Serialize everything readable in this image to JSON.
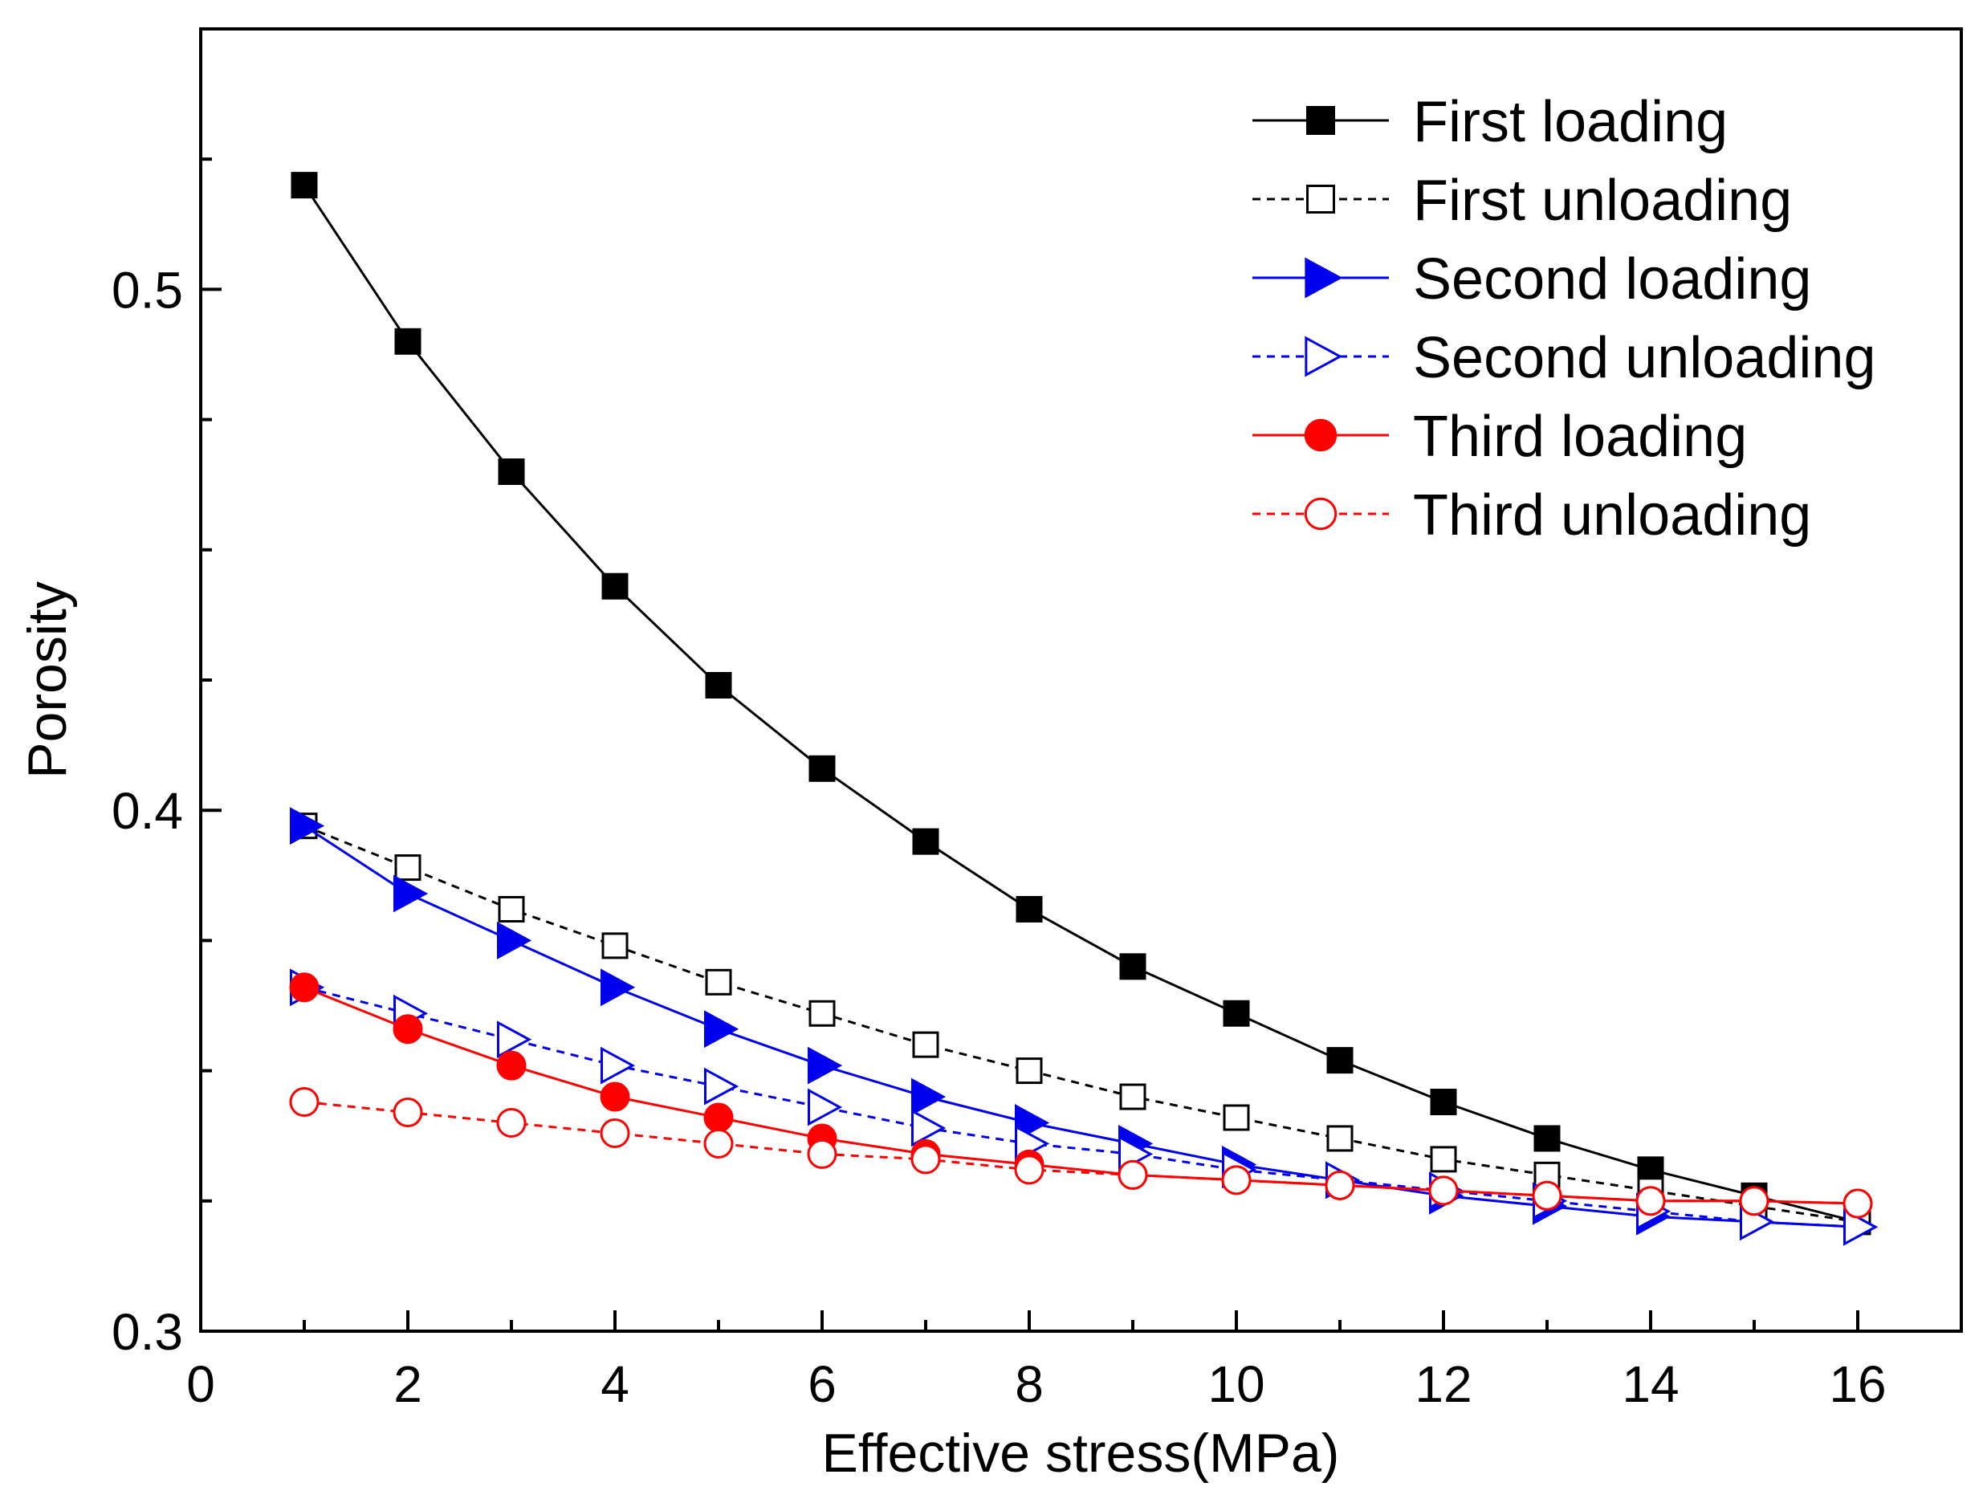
{
  "chart_data": {
    "type": "line",
    "title": "",
    "xlabel": "Effective stress(MPa)",
    "ylabel": "Porosity",
    "xlim": [
      0,
      17
    ],
    "ylim": [
      0.3,
      0.55
    ],
    "xticks": [
      0,
      2,
      4,
      6,
      8,
      10,
      12,
      14,
      16
    ],
    "xtick_labels": [
      "0",
      "2",
      "4",
      "6",
      "8",
      "10",
      "12",
      "14",
      "16"
    ],
    "yticks": [
      0.3,
      0.4,
      0.5
    ],
    "ytick_labels": [
      "0.3",
      "0.4",
      "0.5"
    ],
    "grid": false,
    "legend_position": "top-right",
    "x": [
      1,
      2,
      3,
      4,
      5,
      6,
      7,
      8,
      9,
      10,
      11,
      12,
      13,
      14,
      15,
      16
    ],
    "series": [
      {
        "name": "First loading",
        "color": "#000000",
        "marker": "square",
        "filled": true,
        "dashed": false,
        "values": [
          0.52,
          0.49,
          0.465,
          0.443,
          0.424,
          0.408,
          0.394,
          0.381,
          0.37,
          0.361,
          0.352,
          0.344,
          0.337,
          0.331,
          0.326,
          0.321
        ]
      },
      {
        "name": "First unloading",
        "color": "#000000",
        "marker": "square",
        "filled": false,
        "dashed": true,
        "values": [
          0.397,
          0.389,
          0.381,
          0.374,
          0.367,
          0.361,
          0.355,
          0.35,
          0.345,
          0.341,
          0.337,
          0.333,
          0.33,
          0.327,
          0.324,
          0.321
        ]
      },
      {
        "name": "Second loading",
        "color": "#0000ee",
        "marker": "triangle-right",
        "filled": true,
        "dashed": false,
        "values": [
          0.397,
          0.384,
          0.375,
          0.366,
          0.358,
          0.351,
          0.345,
          0.34,
          0.336,
          0.332,
          0.329,
          0.326,
          0.324,
          0.322,
          0.321,
          0.32
        ]
      },
      {
        "name": "Second unloading",
        "color": "#0000ee",
        "marker": "triangle-right",
        "filled": false,
        "dashed": true,
        "values": [
          0.366,
          0.361,
          0.356,
          0.351,
          0.347,
          0.343,
          0.339,
          0.336,
          0.334,
          0.331,
          0.329,
          0.327,
          0.325,
          0.323,
          0.321,
          0.32
        ]
      },
      {
        "name": "Third loading",
        "color": "#ff0000",
        "marker": "circle",
        "filled": true,
        "dashed": false,
        "values": [
          0.366,
          0.358,
          0.351,
          0.345,
          0.341,
          0.337,
          0.334,
          0.332,
          0.33,
          0.329,
          0.328,
          0.327,
          0.326,
          0.325,
          0.325,
          0.3245
        ]
      },
      {
        "name": "Third unloading",
        "color": "#ff0000",
        "marker": "circle",
        "filled": false,
        "dashed": true,
        "values": [
          0.344,
          0.342,
          0.34,
          0.338,
          0.336,
          0.334,
          0.333,
          0.331,
          0.33,
          0.329,
          0.328,
          0.327,
          0.326,
          0.325,
          0.325,
          0.3245
        ]
      }
    ]
  }
}
